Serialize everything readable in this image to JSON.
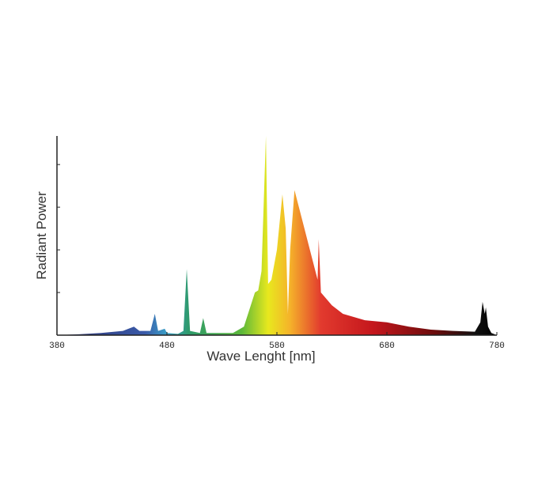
{
  "chart_data": {
    "type": "area",
    "xlabel": "Wave Lenght [nm]",
    "ylabel": "Radiant Power",
    "x": [
      380,
      400,
      420,
      440,
      445,
      450,
      455,
      465,
      469,
      472,
      478,
      480,
      490,
      495,
      498,
      501,
      510,
      513,
      516,
      540,
      550,
      555,
      560,
      563,
      566,
      570,
      572,
      575,
      580,
      585,
      588,
      590,
      592,
      596,
      600,
      610,
      617,
      618,
      620,
      630,
      640,
      660,
      680,
      700,
      720,
      740,
      760,
      765,
      767,
      769,
      770,
      772,
      775,
      780
    ],
    "values": [
      0,
      0.02,
      0.05,
      0.1,
      0.15,
      0.2,
      0.1,
      0.1,
      0.5,
      0.1,
      0.15,
      0.05,
      0.03,
      0.1,
      1.55,
      0.1,
      0.05,
      0.4,
      0.05,
      0.05,
      0.2,
      0.6,
      1.0,
      1.05,
      1.5,
      4.67,
      1.2,
      1.3,
      2.0,
      3.3,
      2.5,
      0.5,
      2.0,
      3.4,
      3.0,
      2.0,
      1.3,
      2.25,
      1.0,
      0.7,
      0.5,
      0.35,
      0.3,
      0.2,
      0.13,
      0.1,
      0.08,
      0.3,
      0.78,
      0.5,
      0.65,
      0.2,
      0.05,
      0
    ],
    "xlim": [
      380,
      780
    ],
    "xticks": [
      380,
      480,
      580,
      680,
      780
    ],
    "ylim": [
      0,
      4.67
    ],
    "yticks": [
      0,
      1,
      2,
      3,
      4
    ]
  }
}
